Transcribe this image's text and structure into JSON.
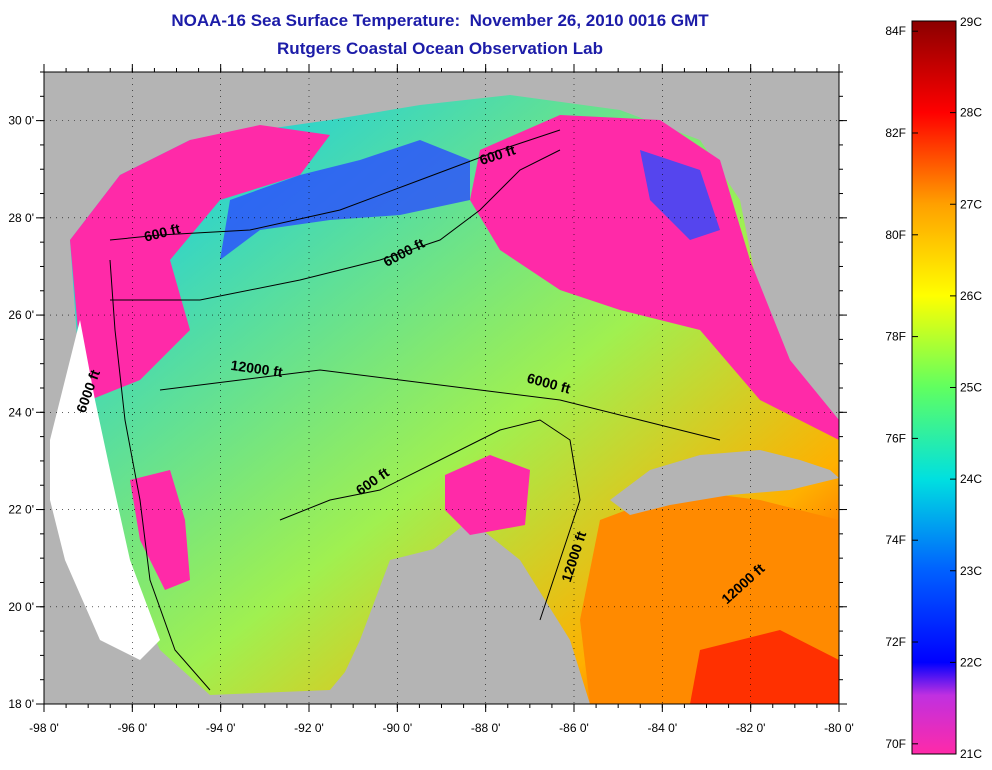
{
  "title": {
    "line1": "NOAA-16 Sea Surface Temperature:  November 26, 2010 0016 GMT",
    "line2": "Rutgers Coastal Ocean Observation Lab"
  },
  "map": {
    "lon_labels": [
      "-98 0'",
      "-96 0'",
      "-94 0'",
      "-92 0'",
      "-90 0'",
      "-88 0'",
      "-86 0'",
      "-84 0'",
      "-82 0'",
      "-80 0'"
    ],
    "lon_values": [
      -98,
      -96,
      -94,
      -92,
      -90,
      -88,
      -86,
      -84,
      -82,
      -80
    ],
    "lat_labels": [
      "30 0'",
      "28 0'",
      "26 0'",
      "24 0'",
      "22 0'",
      "20 0'",
      "18 0'"
    ],
    "lat_values": [
      30,
      28,
      26,
      24,
      22,
      20,
      18
    ],
    "lon_range": [
      -98,
      -80
    ],
    "lat_range": [
      18,
      31
    ],
    "land_color": "#b4b4b4",
    "cloud_color": "#ff2aa8",
    "contour_labels": [
      {
        "text": "600 ft",
        "lon": -95.3,
        "lat": 27.6,
        "angle": -14
      },
      {
        "text": "600 ft",
        "lon": -87.7,
        "lat": 29.2,
        "angle": -18
      },
      {
        "text": "6000 ft",
        "lon": -89.8,
        "lat": 27.2,
        "angle": -28
      },
      {
        "text": "12000 ft",
        "lon": -93.2,
        "lat": 24.8,
        "angle": 8
      },
      {
        "text": "6000 ft",
        "lon": -86.6,
        "lat": 24.5,
        "angle": 15
      },
      {
        "text": "6000 ft",
        "lon": -96.9,
        "lat": 24.4,
        "angle": -70
      },
      {
        "text": "600 ft",
        "lon": -90.5,
        "lat": 22.5,
        "angle": -35
      },
      {
        "text": "12000 ft",
        "lon": -85.9,
        "lat": 21.0,
        "angle": -72
      },
      {
        "text": "12000 ft",
        "lon": -82.1,
        "lat": 20.4,
        "angle": -42
      }
    ]
  },
  "colorbar": {
    "f_labels": [
      "84F",
      "82F",
      "80F",
      "78F",
      "76F",
      "74F",
      "72F",
      "70F"
    ],
    "f_values": [
      84,
      82,
      80,
      78,
      76,
      74,
      72,
      70
    ],
    "c_labels": [
      "29C",
      "28C",
      "27C",
      "26C",
      "25C",
      "24C",
      "23C",
      "22C",
      "21C"
    ],
    "c_values": [
      29,
      28,
      27,
      26,
      25,
      24,
      23,
      22,
      21
    ],
    "range_c": [
      21,
      29
    ],
    "colors_low_to_high": [
      "#ff2aa8",
      "#8a2be2",
      "#0000ff",
      "#00a0ff",
      "#00e0e0",
      "#7fff7f",
      "#ffff00",
      "#ffa000",
      "#ff0000",
      "#8b0000"
    ]
  }
}
